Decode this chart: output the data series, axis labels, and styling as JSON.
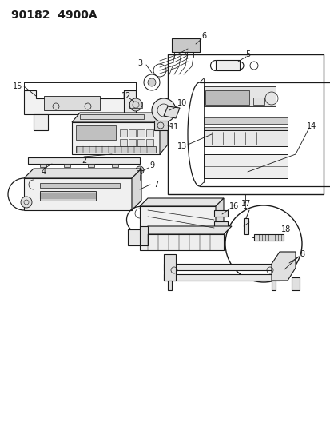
{
  "title": "90182  4900A",
  "bg_color": "#ffffff",
  "line_color": "#1a1a1a",
  "title_fontsize": 10,
  "label_fontsize": 7,
  "fig_width": 4.14,
  "fig_height": 5.33,
  "dpi": 100
}
